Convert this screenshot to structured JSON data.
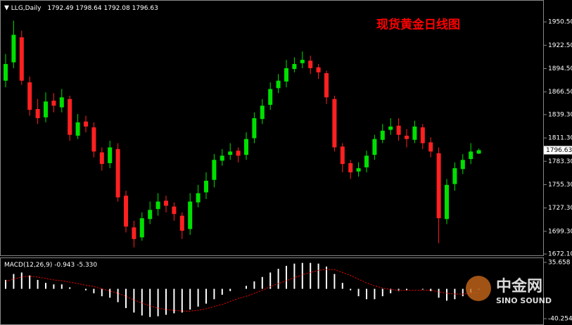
{
  "chart_data": [
    {
      "type": "candlestick",
      "symbol": "LLG,Daily",
      "title": "现货黄金日线图",
      "watermark": [
        "中金网",
        "SINO SOUND"
      ],
      "up_color": "#00e000",
      "down_color": "#ff2020",
      "open": [
        1880,
        1902,
        1932,
        1878,
        1846,
        1836,
        1856,
        1848,
        1858,
        1814,
        1831,
        1824,
        1794,
        1781,
        1798,
        1742,
        1704,
        1692,
        1714,
        1726,
        1736,
        1729,
        1718,
        1702,
        1734,
        1746,
        1761,
        1784,
        1791,
        1796,
        1791,
        1811,
        1834,
        1851,
        1871,
        1879,
        1894,
        1901,
        1904,
        1896,
        1889,
        1858,
        1801,
        1781,
        1771,
        1776,
        1791,
        1809,
        1821,
        1826,
        1814,
        1809,
        1824,
        1806,
        1793,
        1714,
        1756,
        1774,
        1786,
        1792.49
      ],
      "high": [
        1912,
        1952,
        1940,
        1885,
        1858,
        1866,
        1865,
        1870,
        1862,
        1840,
        1838,
        1830,
        1800,
        1808,
        1805,
        1748,
        1712,
        1722,
        1735,
        1745,
        1742,
        1734,
        1722,
        1745,
        1755,
        1770,
        1792,
        1798,
        1805,
        1800,
        1818,
        1842,
        1858,
        1878,
        1888,
        1905,
        1908,
        1915,
        1910,
        1900,
        1892,
        1862,
        1805,
        1785,
        1782,
        1796,
        1815,
        1828,
        1835,
        1835,
        1822,
        1832,
        1828,
        1812,
        1800,
        1762,
        1782,
        1792,
        1805,
        1798.64
      ],
      "low": [
        1872,
        1895,
        1875,
        1838,
        1828,
        1830,
        1842,
        1842,
        1808,
        1810,
        1818,
        1788,
        1772,
        1775,
        1735,
        1698,
        1680,
        1688,
        1708,
        1718,
        1722,
        1712,
        1690,
        1695,
        1728,
        1738,
        1752,
        1778,
        1785,
        1782,
        1785,
        1805,
        1828,
        1845,
        1865,
        1872,
        1890,
        1895,
        1888,
        1882,
        1852,
        1795,
        1770,
        1762,
        1765,
        1770,
        1785,
        1805,
        1815,
        1808,
        1800,
        1805,
        1798,
        1788,
        1685,
        1708,
        1748,
        1768,
        1780,
        1792.08
      ],
      "close": [
        1900,
        1935,
        1880,
        1845,
        1835,
        1855,
        1850,
        1860,
        1815,
        1830,
        1825,
        1795,
        1780,
        1800,
        1740,
        1705,
        1690,
        1715,
        1725,
        1735,
        1730,
        1720,
        1700,
        1735,
        1745,
        1760,
        1785,
        1790,
        1795,
        1790,
        1810,
        1835,
        1850,
        1870,
        1880,
        1895,
        1900,
        1905,
        1895,
        1890,
        1860,
        1800,
        1780,
        1770,
        1775,
        1790,
        1810,
        1820,
        1825,
        1815,
        1810,
        1825,
        1805,
        1795,
        1715,
        1755,
        1775,
        1785,
        1795,
        1796.63
      ],
      "ylim": [
        1669.6,
        1975.1
      ],
      "yticks": [
        {
          "value": 1950.5,
          "label": "1950.50"
        },
        {
          "value": 1922.5,
          "label": "1922.50"
        },
        {
          "value": 1894.5,
          "label": "1894.50"
        },
        {
          "value": 1866.5,
          "label": "1866.50"
        },
        {
          "value": 1839.3,
          "label": "1839.30"
        },
        {
          "value": 1811.3,
          "label": "1811.30"
        },
        {
          "value": 1783.3,
          "label": "1783.30"
        },
        {
          "value": 1755.3,
          "label": "1755.30"
        },
        {
          "value": 1727.3,
          "label": "1727.30"
        },
        {
          "value": 1699.3,
          "label": "1699.30"
        },
        {
          "value": 1672.1,
          "label": "1672.10"
        }
      ]
    },
    {
      "type": "macd",
      "label": "MACD(12,26,9)",
      "histogram_color": "#ffffff",
      "signal_color": "#ff0000",
      "histogram": [
        12,
        20,
        22,
        18,
        12,
        8,
        6,
        6,
        2,
        0,
        -2,
        -6,
        -10,
        -12,
        -18,
        -26,
        -32,
        -36,
        -38,
        -37,
        -35,
        -33,
        -32,
        -28,
        -24,
        -20,
        -14,
        -8,
        -3,
        0,
        4,
        10,
        16,
        22,
        27,
        31,
        34,
        35,
        35,
        34,
        30,
        20,
        8,
        -2,
        -10,
        -14,
        -14,
        -10,
        -6,
        -3,
        -2,
        0,
        -1,
        -3,
        -12,
        -16,
        -14,
        -10,
        -5,
        -0.943
      ],
      "signal": [
        10,
        13,
        16,
        17,
        16,
        14,
        12,
        11,
        9,
        7,
        5,
        3,
        0,
        -3,
        -6,
        -10,
        -15,
        -19,
        -23,
        -26,
        -28,
        -29,
        -30,
        -30,
        -29,
        -27,
        -24,
        -21,
        -17,
        -13,
        -10,
        -6,
        -2,
        3,
        7,
        11,
        15,
        19,
        22,
        25,
        26,
        26,
        22,
        18,
        13,
        8,
        4,
        1,
        -1,
        -2,
        -2,
        -2,
        -2,
        -2,
        -4,
        -6,
        -7,
        -7,
        -6,
        -5.33
      ],
      "signal_value_labels": [
        null,
        null,
        null,
        null,
        null,
        null,
        null,
        null,
        null,
        null,
        null,
        null,
        null,
        null,
        null,
        null,
        null,
        null,
        null,
        null,
        null,
        null,
        null,
        null,
        null,
        null,
        null,
        null,
        null,
        null,
        null,
        null,
        null,
        null,
        null,
        null,
        null,
        null,
        null,
        null,
        null,
        null,
        null,
        null,
        null,
        null,
        null,
        null,
        null,
        null,
        null,
        null,
        null,
        null,
        null,
        null,
        null,
        null,
        null,
        "-5.330"
      ],
      "ylim": [
        -46.9,
        42.3
      ],
      "yticks": [
        35.658,
        -40.254
      ]
    }
  ]
}
